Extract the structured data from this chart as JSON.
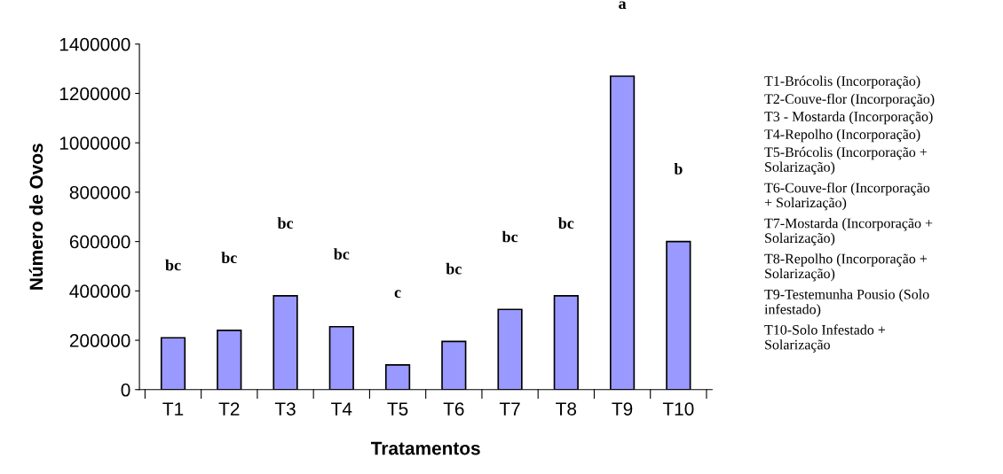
{
  "chart_data": {
    "type": "bar",
    "xlabel": "Tratamentos",
    "ylabel": "Número de Ovos",
    "categories": [
      "T1",
      "T2",
      "T3",
      "T4",
      "T5",
      "T6",
      "T7",
      "T8",
      "T9",
      "T10"
    ],
    "values": [
      210000,
      240000,
      380000,
      255000,
      100000,
      195000,
      325000,
      380000,
      1270000,
      600000
    ],
    "color": "#9999ff",
    "ylim": [
      0,
      1400000
    ],
    "yticks": [
      0,
      200000,
      400000,
      600000,
      800000,
      1000000,
      1200000,
      1400000
    ],
    "grid": false,
    "legend": false,
    "annotations": [
      "bc",
      "bc",
      "bc",
      "bc",
      "c",
      "bc",
      "bc",
      "bc",
      "a",
      "b",
      "T1-Brócolis (Incorporação)",
      "T2-Couve-flor (Incorporação)",
      "T3 - Mostarda (Incorporação)",
      "T4-Repolho (Incorporação)",
      "T5-Brócolis (Incorporação +\nSolarização)",
      "T6-Couve-flor (Incorporação\n+ Solarização)",
      "T7-Mostarda (Incorporação +\nSolarização)",
      "T8-Repolho (Incorporação +\nSolarização)",
      "T9-Testemunha Pousio (Solo\ninfestado)",
      "T10-Solo Infestado +\nSolarização"
    ]
  }
}
